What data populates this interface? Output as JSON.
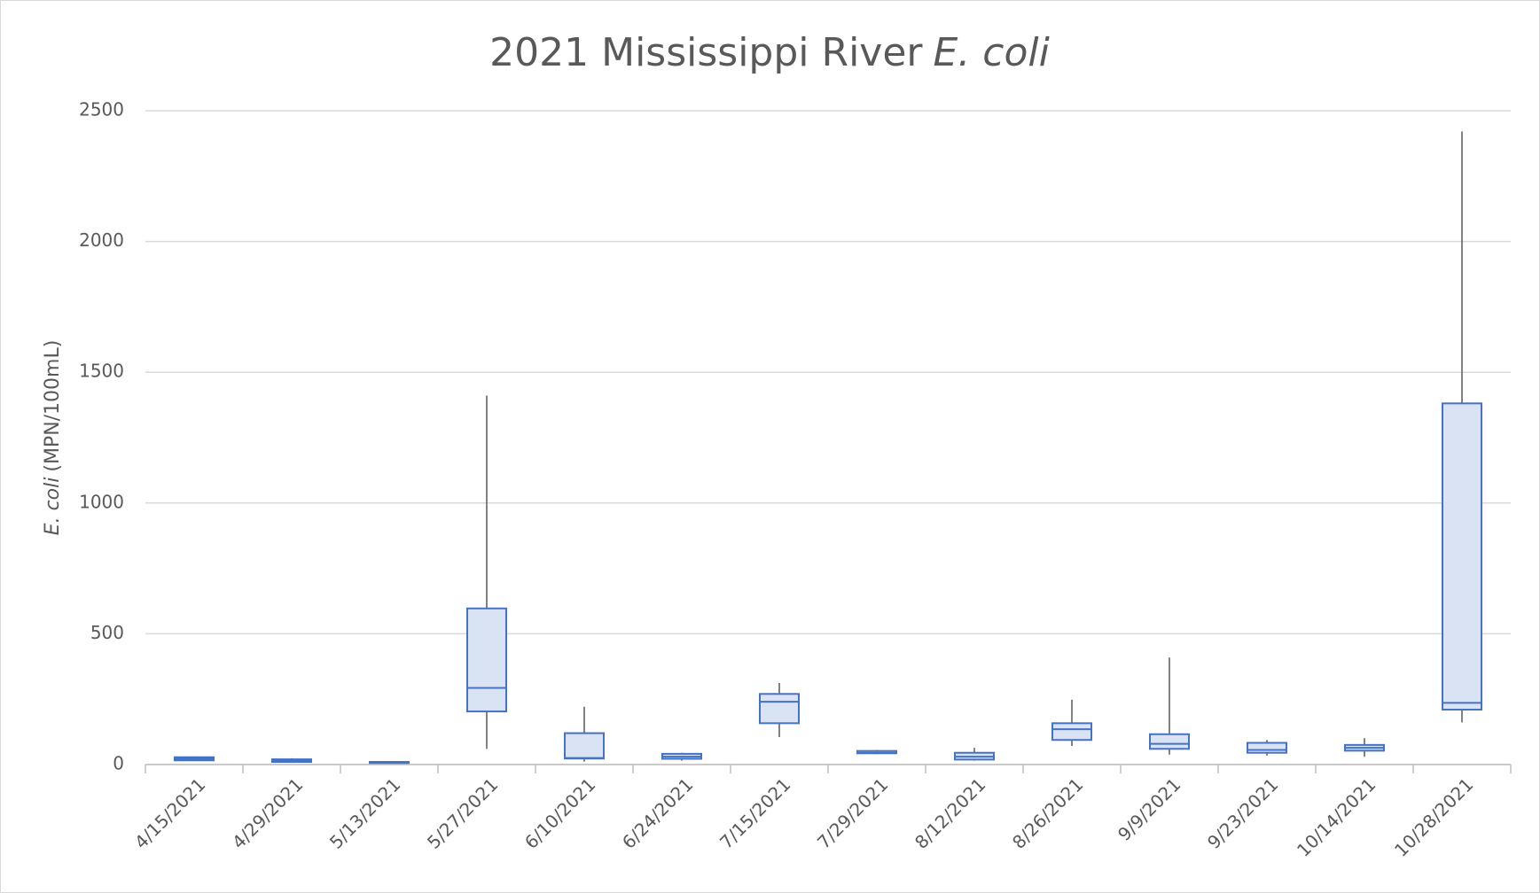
{
  "chart_data": {
    "type": "box",
    "title": [
      "2021 Mississippi River",
      "E. coli"
    ],
    "y_label": [
      "E. coli",
      "(MPN/100mL)"
    ],
    "categories": [
      "4/15/2021",
      "4/29/2021",
      "5/13/2021",
      "5/27/2021",
      "6/10/2021",
      "6/24/2021",
      "7/15/2021",
      "7/29/2021",
      "8/12/2021",
      "8/26/2021",
      "9/9/2021",
      "9/23/2021",
      "10/14/2021",
      "10/28/2021"
    ],
    "boxes": [
      {
        "min": 14,
        "q1": 16,
        "median": 22,
        "q3": 28,
        "max": 31
      },
      {
        "min": 8,
        "q1": 10,
        "median": 15,
        "q3": 20,
        "max": 24
      },
      {
        "min": 4,
        "q1": 6,
        "median": 8,
        "q3": 10,
        "max": 12
      },
      {
        "min": 60,
        "q1": 203,
        "median": 293,
        "q3": 597,
        "max": 1411
      },
      {
        "min": 11,
        "q1": 23,
        "median": 25,
        "q3": 120,
        "max": 221
      },
      {
        "min": 15,
        "q1": 22,
        "median": 30,
        "q3": 41,
        "max": 45
      },
      {
        "min": 105,
        "q1": 158,
        "median": 240,
        "q3": 270,
        "max": 312
      },
      {
        "min": 40,
        "q1": 43,
        "median": 45,
        "q3": 52,
        "max": 56
      },
      {
        "min": 15,
        "q1": 19,
        "median": 30,
        "q3": 45,
        "max": 64
      },
      {
        "min": 71,
        "q1": 94,
        "median": 135,
        "q3": 158,
        "max": 248
      },
      {
        "min": 38,
        "q1": 60,
        "median": 79,
        "q3": 116,
        "max": 409
      },
      {
        "min": 34,
        "q1": 45,
        "median": 56,
        "q3": 83,
        "max": 94
      },
      {
        "min": 30,
        "q1": 53,
        "median": 64,
        "q3": 75,
        "max": 101
      },
      {
        "min": 161,
        "q1": 210,
        "median": 236,
        "q3": 1381,
        "max": 2421
      }
    ],
    "box_color": "#dae3f3",
    "box_edge_color": "#4472c4",
    "whisker_color": "#595959",
    "ylim": [
      0,
      2500
    ],
    "yticks": [
      0,
      500,
      1000,
      1500,
      2000,
      2500
    ],
    "grid": true
  }
}
